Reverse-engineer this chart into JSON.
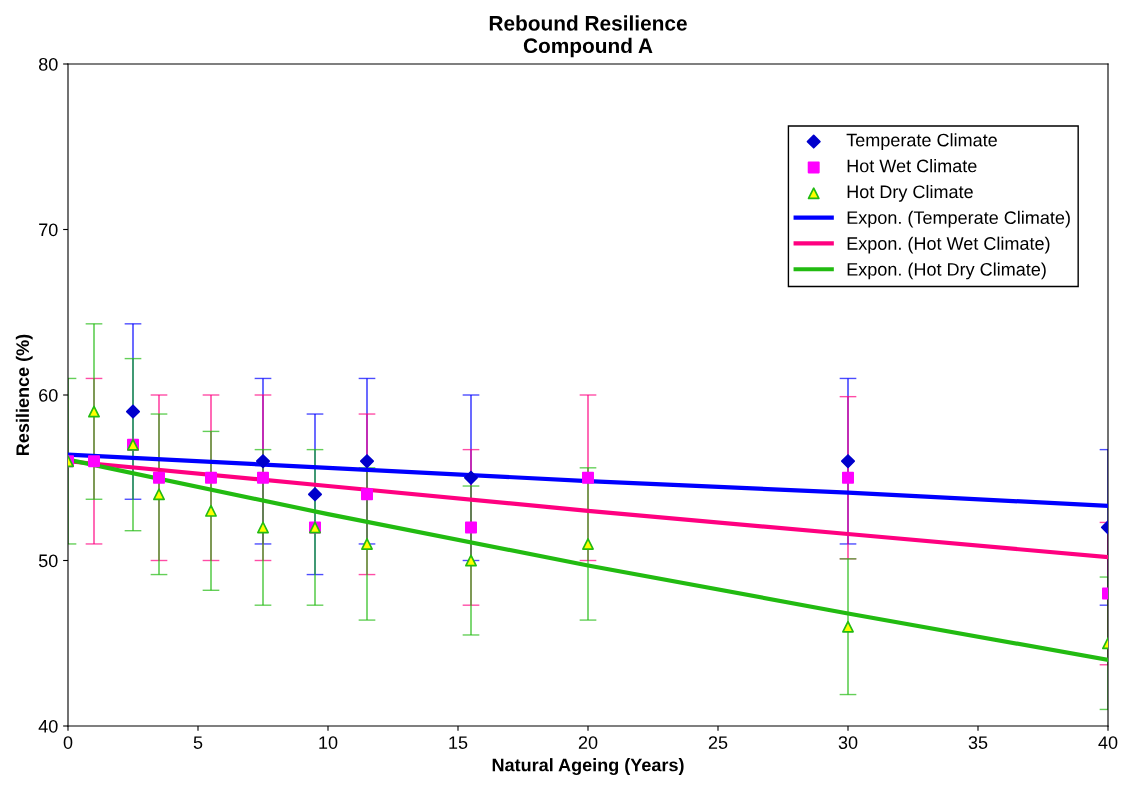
{
  "chart_data": {
    "type": "scatter",
    "title": "Rebound Resilience\nCompound A",
    "xlabel": "Natural Ageing (Years)",
    "ylabel": "Resilience (%)",
    "xlim": [
      0,
      40
    ],
    "xticks": [
      0,
      5,
      10,
      15,
      20,
      25,
      30,
      35,
      40
    ],
    "ylim": [
      40,
      80
    ],
    "yticks": [
      40,
      50,
      60,
      70,
      80
    ],
    "grid": false,
    "legend": "top right",
    "series": [
      {
        "name": "Temperate Climate",
        "marker": "diamond",
        "color": "#0000cc",
        "x": [
          2.5,
          7.5,
          9.5,
          11.5,
          15.5,
          30,
          40
        ],
        "values": [
          59,
          56,
          54,
          56,
          55,
          56,
          52
        ],
        "errors": [
          5.3,
          5,
          4.85,
          5,
          5,
          5,
          4.7
        ]
      },
      {
        "name": "Hot Wet Climate",
        "marker": "square",
        "color": "#ff00ff",
        "x": [
          0,
          1,
          2.5,
          3.5,
          5.5,
          7.5,
          9.5,
          11.5,
          15.5,
          20,
          30,
          40
        ],
        "values": [
          56,
          56,
          57,
          55,
          55,
          55,
          52,
          54,
          52,
          55,
          55,
          48
        ],
        "errors": [
          null,
          5,
          null,
          5,
          5,
          5,
          null,
          4.85,
          4.7,
          5,
          4.9,
          4.3
        ]
      },
      {
        "name": "Hot Dry Climate",
        "marker": "triangle",
        "color": "#ffff00",
        "x": [
          0,
          1,
          2.5,
          3.5,
          5.5,
          7.5,
          9.5,
          11.5,
          15.5,
          20,
          30,
          40
        ],
        "values": [
          56,
          59,
          57,
          54,
          53,
          52,
          52,
          51,
          50,
          51,
          46,
          45
        ],
        "errors": [
          5,
          5.3,
          5.2,
          4.85,
          4.8,
          4.7,
          4.7,
          4.6,
          4.5,
          4.6,
          4.1,
          4
        ]
      },
      {
        "name": "Expon. (Temperate Climate)",
        "type": "line",
        "marker": "none",
        "color": "#0000ff",
        "x": [
          0,
          10,
          20,
          30,
          40
        ],
        "values": [
          56.4,
          55.6,
          54.8,
          54.1,
          53.3
        ]
      },
      {
        "name": "Expon. (Hot Wet Climate)",
        "type": "line",
        "marker": "none",
        "color": "#ff0080",
        "x": [
          0,
          10,
          20,
          30,
          40
        ],
        "values": [
          56,
          54.5,
          53.0,
          51.6,
          50.2
        ]
      },
      {
        "name": "Expon. (Hot Dry Climate)",
        "type": "line",
        "marker": "none",
        "color": "#22bb11",
        "x": [
          0,
          10,
          20,
          30,
          40
        ],
        "values": [
          56.1,
          52.8,
          49.7,
          46.8,
          44.0
        ]
      }
    ]
  }
}
